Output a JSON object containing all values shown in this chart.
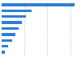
{
  "values": [
    31.7,
    13.0,
    10.5,
    9.0,
    7.5,
    6.0,
    4.5,
    3.0,
    1.5
  ],
  "bar_color": "#2e7fd4",
  "background_color": "#ffffff",
  "grid_color": "#cccccc",
  "xlim": [
    0,
    34
  ],
  "bar_height": 0.45,
  "figsize": [
    1.0,
    0.71
  ],
  "dpi": 100
}
